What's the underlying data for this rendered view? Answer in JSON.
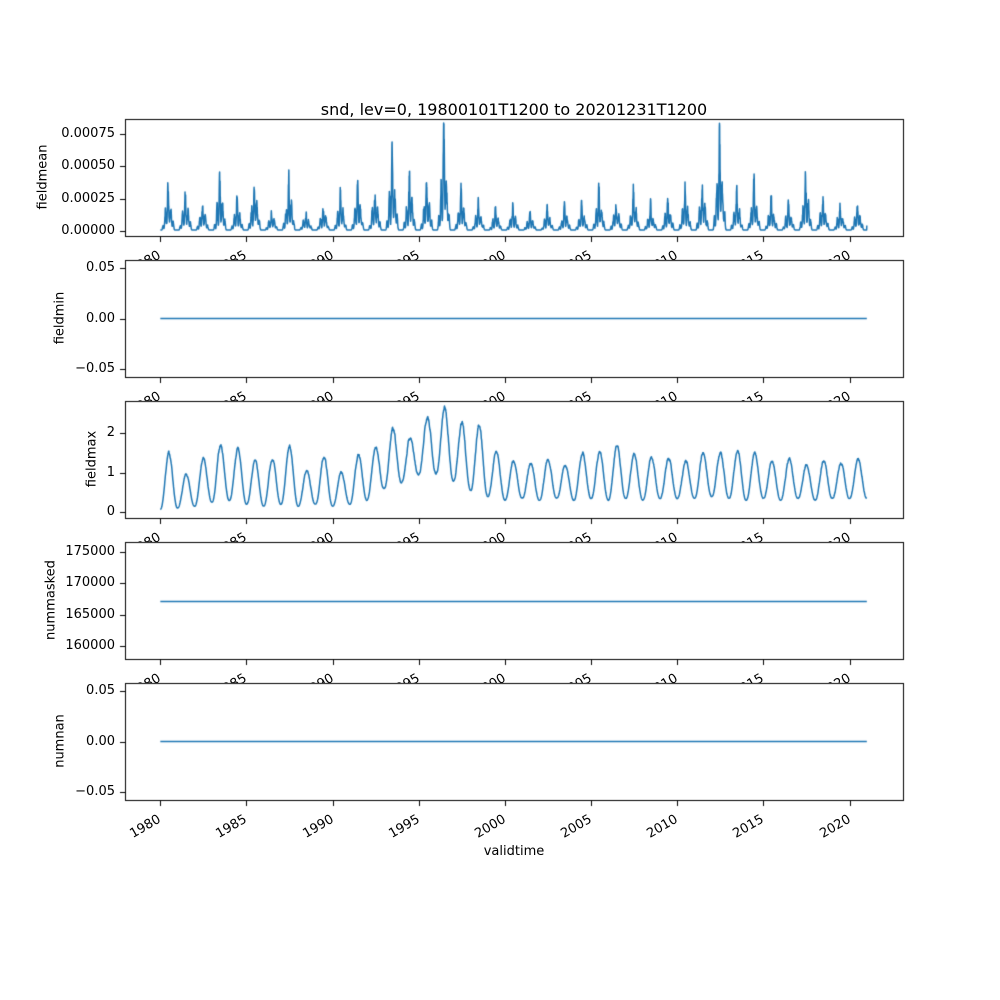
{
  "chart_data": {
    "type": "line",
    "title": "snd, lev=0, 19800101T1200 to 20201231T1200",
    "xlabel": "validtime",
    "line_color": "#1f77b4",
    "axis_color": "#000000",
    "background": "#ffffff",
    "x_start_year": 1980.0,
    "x_end_year": 2021.0,
    "xlim": [
      1977.95,
      2023.1
    ],
    "x_ticks": [
      1980,
      1985,
      1990,
      1995,
      2000,
      2005,
      2010,
      2015,
      2020
    ],
    "x_tick_labels": [
      "1980",
      "1985",
      "1990",
      "1995",
      "2000",
      "2005",
      "2010",
      "2015",
      "2020"
    ],
    "subplots": [
      {
        "name": "fieldmean",
        "ylabel": "fieldmean",
        "kind": "annual-spikes",
        "ylim": [
          -4.15e-05,
          0.00087
        ],
        "yticks": [
          0.0,
          0.00025,
          0.0005,
          0.00075
        ],
        "ytick_labels": [
          "0.00000",
          "0.00025",
          "0.00050",
          "0.00075"
        ],
        "baseline": 1e-05,
        "annual_peak_values": [
          0.00036,
          0.00031,
          0.00021,
          0.00043,
          0.00024,
          0.0004,
          0.00016,
          0.00042,
          0.00015,
          0.00021,
          0.0003,
          0.00035,
          0.00035,
          0.0006,
          0.00045,
          0.0004,
          0.00082,
          0.00033,
          0.00022,
          0.00017,
          0.00019,
          0.00014,
          0.00017,
          0.00019,
          0.00021,
          0.00033,
          0.00023,
          0.00033,
          0.00021,
          0.00026,
          0.00033,
          0.00039,
          0.00083,
          0.00031,
          0.00039,
          0.00026,
          0.00021,
          0.00046,
          0.00026,
          0.00021,
          0.00022
        ]
      },
      {
        "name": "fieldmin",
        "ylabel": "fieldmin",
        "kind": "constant",
        "ylim": [
          -0.0575,
          0.0575
        ],
        "yticks": [
          -0.05,
          0.0,
          0.05
        ],
        "ytick_labels": [
          "−0.05",
          "0.00",
          "0.05"
        ],
        "constant_value": 0.0
      },
      {
        "name": "fieldmax",
        "ylabel": "fieldmax",
        "kind": "seasonal-wave",
        "ylim": [
          -0.15,
          2.82
        ],
        "yticks": [
          0,
          1,
          2
        ],
        "ytick_labels": [
          "0",
          "1",
          "2"
        ],
        "annual_peak_values": [
          1.5,
          0.95,
          1.35,
          1.7,
          1.6,
          1.3,
          1.35,
          1.65,
          1.05,
          1.4,
          1.0,
          1.45,
          1.65,
          2.1,
          1.9,
          2.45,
          2.65,
          2.25,
          2.2,
          1.55,
          1.3,
          1.25,
          1.35,
          1.2,
          1.5,
          1.55,
          1.7,
          1.45,
          1.4,
          1.35,
          1.3,
          1.5,
          1.5,
          1.55,
          1.5,
          1.3,
          1.35,
          1.2,
          1.3,
          1.25,
          1.35
        ],
        "annual_min_values": [
          0.07,
          0.1,
          0.15,
          0.25,
          0.3,
          0.2,
          0.15,
          0.2,
          0.15,
          0.2,
          0.15,
          0.2,
          0.3,
          0.6,
          0.75,
          0.95,
          1.0,
          0.8,
          0.55,
          0.4,
          0.3,
          0.35,
          0.3,
          0.35,
          0.3,
          0.35,
          0.3,
          0.35,
          0.3,
          0.35,
          0.35,
          0.35,
          0.4,
          0.35,
          0.3,
          0.35,
          0.3,
          0.35,
          0.3,
          0.35,
          0.35
        ]
      },
      {
        "name": "nummasked",
        "ylabel": "nummasked",
        "kind": "constant",
        "ylim": [
          157950,
          176550
        ],
        "yticks": [
          160000,
          165000,
          170000,
          175000
        ],
        "ytick_labels": [
          "160000",
          "165000",
          "170000",
          "175000"
        ],
        "constant_value": 167100
      },
      {
        "name": "numnan",
        "ylabel": "numnan",
        "kind": "constant",
        "ylim": [
          -0.0575,
          0.0575
        ],
        "yticks": [
          -0.05,
          0.0,
          0.05
        ],
        "ytick_labels": [
          "−0.05",
          "0.00",
          "0.05"
        ],
        "constant_value": 0.0
      }
    ]
  }
}
